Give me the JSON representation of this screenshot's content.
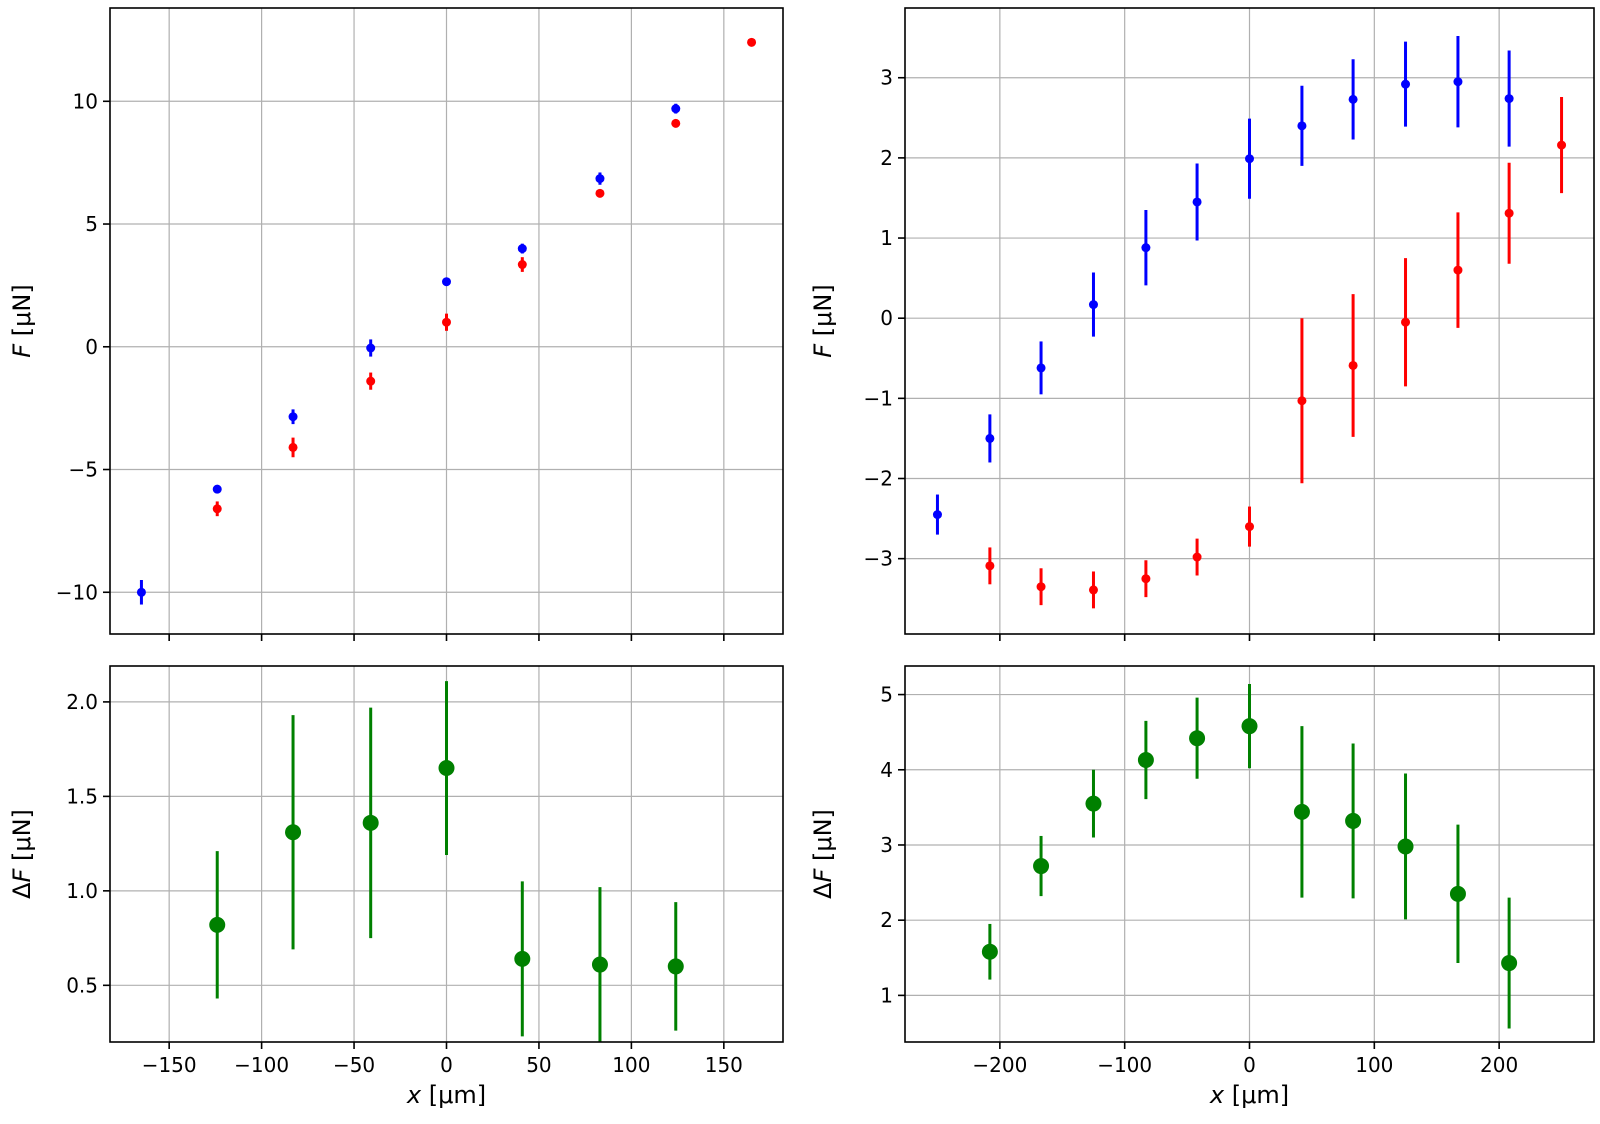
{
  "chart_data": [
    {
      "id": "top-left",
      "type": "scatter",
      "xlabel": "x [μm]",
      "ylabel": "F [μN]",
      "xlim": [
        -182,
        182
      ],
      "ylim": [
        -11.7,
        13.8
      ],
      "xticks": [
        -150,
        -100,
        -50,
        0,
        50,
        100,
        150
      ],
      "xtick_labels": [],
      "yticks": [
        -10,
        -5,
        0,
        5,
        10
      ],
      "ytick_labels": [
        "−10",
        "−5",
        "0",
        "5",
        "10"
      ],
      "grid": true,
      "series": [
        {
          "color": "#0000ff",
          "marker_size": 4.5,
          "x": [
            -165,
            -124,
            -83,
            -41,
            0,
            41,
            83,
            124
          ],
          "y": [
            -10.0,
            -5.8,
            -2.85,
            -0.05,
            2.65,
            4.0,
            6.85,
            9.7
          ],
          "err": [
            0.5,
            0.15,
            0.3,
            0.35,
            0.1,
            0.2,
            0.25,
            0.2
          ]
        },
        {
          "color": "#ff0000",
          "marker_size": 4.5,
          "x": [
            -124,
            -83,
            -41,
            0,
            41,
            83,
            124,
            165
          ],
          "y": [
            -6.6,
            -4.1,
            -1.4,
            1.0,
            3.35,
            6.25,
            9.1,
            12.4
          ],
          "err": [
            0.3,
            0.4,
            0.35,
            0.35,
            0.3,
            0.15,
            0.1,
            0.1
          ]
        }
      ]
    },
    {
      "id": "top-right",
      "type": "scatter",
      "xlabel": "x [μm]",
      "ylabel": "F [μN]",
      "xlim": [
        -276,
        276
      ],
      "ylim": [
        -3.94,
        3.87
      ],
      "xticks": [
        -200,
        -100,
        0,
        100,
        200
      ],
      "xtick_labels": [],
      "yticks": [
        -3,
        -2,
        -1,
        0,
        1,
        2,
        3
      ],
      "ytick_labels": [
        "−3",
        "−2",
        "−1",
        "0",
        "1",
        "2",
        "3"
      ],
      "grid": true,
      "series": [
        {
          "color": "#0000ff",
          "marker_size": 4.5,
          "x": [
            -250,
            -208,
            -167,
            -125,
            -83,
            -42,
            0,
            42,
            83,
            125,
            167,
            208
          ],
          "y": [
            -2.45,
            -1.5,
            -0.62,
            0.17,
            0.88,
            1.45,
            1.99,
            2.4,
            2.73,
            2.92,
            2.95,
            2.74
          ],
          "err": [
            0.25,
            0.3,
            0.33,
            0.4,
            0.47,
            0.48,
            0.5,
            0.5,
            0.5,
            0.53,
            0.57,
            0.6
          ]
        },
        {
          "color": "#ff0000",
          "marker_size": 4.5,
          "x": [
            -208,
            -167,
            -125,
            -83,
            -42,
            0,
            42,
            83,
            125,
            167,
            208,
            250
          ],
          "y": [
            -3.09,
            -3.35,
            -3.39,
            -3.25,
            -2.98,
            -2.6,
            -1.03,
            -0.59,
            -0.05,
            0.6,
            1.31,
            2.16
          ],
          "err": [
            0.23,
            0.23,
            0.23,
            0.23,
            0.23,
            0.25,
            1.03,
            0.89,
            0.8,
            0.72,
            0.63,
            0.6
          ]
        }
      ]
    },
    {
      "id": "bottom-left",
      "type": "scatter",
      "xlabel": "x [μm]",
      "ylabel": "ΔF [μN]",
      "xlim": [
        -182,
        182
      ],
      "ylim": [
        0.2,
        2.19
      ],
      "xticks": [
        -150,
        -100,
        -50,
        0,
        50,
        100,
        150
      ],
      "xtick_labels": [
        "−150",
        "−100",
        "−50",
        "0",
        "50",
        "100",
        "150"
      ],
      "yticks": [
        0.5,
        1.0,
        1.5,
        2.0
      ],
      "ytick_labels": [
        "0.5",
        "1.0",
        "1.5",
        "2.0"
      ],
      "grid": true,
      "series": [
        {
          "color": "#008000",
          "marker_size": 8,
          "x": [
            -124,
            -83,
            -41,
            0,
            41,
            83,
            124
          ],
          "y": [
            0.82,
            1.31,
            1.36,
            1.65,
            0.64,
            0.61,
            0.6
          ],
          "err": [
            0.39,
            0.62,
            0.61,
            0.46,
            0.41,
            0.41,
            0.34
          ]
        }
      ]
    },
    {
      "id": "bottom-right",
      "type": "scatter",
      "xlabel": "x [μm]",
      "ylabel": "ΔF [μN]",
      "xlim": [
        -276,
        276
      ],
      "ylim": [
        0.38,
        5.38
      ],
      "xticks": [
        -200,
        -100,
        0,
        100,
        200
      ],
      "xtick_labels": [
        "−200",
        "−100",
        "0",
        "100",
        "200"
      ],
      "yticks": [
        1,
        2,
        3,
        4,
        5
      ],
      "ytick_labels": [
        "1",
        "2",
        "3",
        "4",
        "5"
      ],
      "grid": true,
      "series": [
        {
          "color": "#008000",
          "marker_size": 8,
          "x": [
            -208,
            -167,
            -125,
            -83,
            -42,
            0,
            42,
            83,
            125,
            167,
            208
          ],
          "y": [
            1.58,
            2.72,
            3.55,
            4.13,
            4.42,
            4.58,
            3.44,
            3.32,
            2.98,
            2.35,
            1.43
          ],
          "err": [
            0.37,
            0.4,
            0.45,
            0.52,
            0.54,
            0.56,
            1.14,
            1.03,
            0.97,
            0.92,
            0.87
          ]
        }
      ]
    }
  ]
}
